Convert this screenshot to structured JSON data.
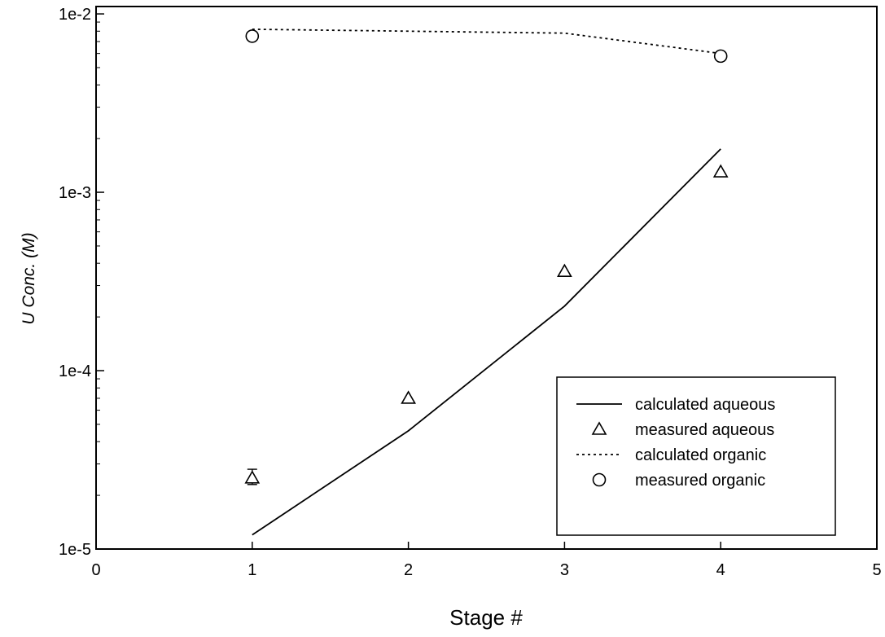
{
  "chart_data": {
    "type": "line",
    "xlabel": "Stage #",
    "ylabel": "U Conc. (M)",
    "xlim": [
      0,
      5
    ],
    "ylim": [
      1e-05,
      0.011
    ],
    "yscale": "log",
    "grid": false,
    "legend_position": "bottom-right",
    "x_ticks": [
      0,
      1,
      2,
      3,
      4,
      5
    ],
    "x_tick_labels": [
      "0",
      "1",
      "2",
      "3",
      "4",
      "5"
    ],
    "y_ticks": [
      1e-05,
      0.0001,
      0.001,
      0.01
    ],
    "y_tick_labels": [
      "1e-5",
      "1e-4",
      "1e-3",
      "1e-2"
    ],
    "series": [
      {
        "name": "calculated aqueous",
        "style": "solid-line",
        "x": [
          1,
          2,
          3,
          4
        ],
        "y": [
          1.2e-05,
          4.6e-05,
          0.00023,
          0.00175
        ]
      },
      {
        "name": "measured aqueous",
        "style": "triangle-marker",
        "x": [
          1,
          2,
          3,
          4
        ],
        "y": [
          2.5e-05,
          7e-05,
          0.00036,
          0.0013
        ],
        "error_low": [
          2.3e-05,
          null,
          null,
          null
        ],
        "error_high": [
          2.8e-05,
          null,
          null,
          null
        ]
      },
      {
        "name": "calculated organic",
        "style": "dotted-line",
        "x": [
          1,
          2,
          3,
          4
        ],
        "y": [
          0.0082,
          0.008,
          0.0078,
          0.006
        ]
      },
      {
        "name": "measured organic",
        "style": "circle-marker",
        "x": [
          1,
          4
        ],
        "y": [
          0.0075,
          0.0058
        ]
      }
    ]
  }
}
